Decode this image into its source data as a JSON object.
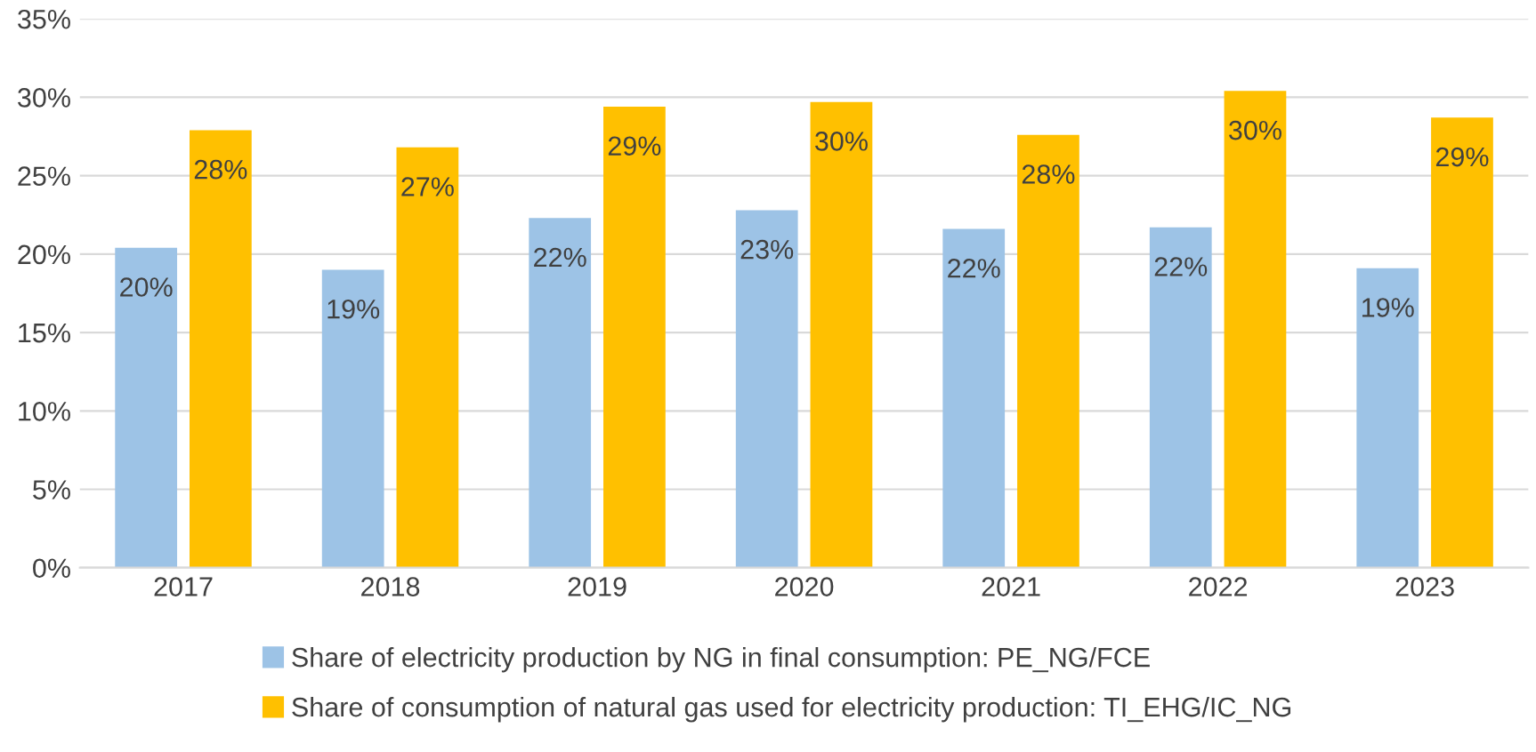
{
  "chart_data": {
    "type": "bar",
    "categories": [
      "2017",
      "2018",
      "2019",
      "2020",
      "2021",
      "2022",
      "2023"
    ],
    "series": [
      {
        "name": "Share of electricity production by NG in final consumption: PE_NG/FCE",
        "color": "#9dc3e6",
        "values": [
          20.4,
          19.0,
          22.3,
          22.8,
          21.6,
          21.7,
          19.1
        ],
        "value_labels": [
          "20%",
          "19%",
          "22%",
          "23%",
          "22%",
          "22%",
          "19%"
        ]
      },
      {
        "name": "Share of consumption of natural gas used for electricity production: TI_EHG/IC_NG",
        "color": "#ffc000",
        "values": [
          27.9,
          26.8,
          29.4,
          29.7,
          27.6,
          30.4,
          28.7
        ],
        "value_labels": [
          "28%",
          "27%",
          "29%",
          "30%",
          "28%",
          "30%",
          "29%"
        ]
      }
    ],
    "ylim": [
      0,
      35
    ],
    "yticks": [
      {
        "value": 0,
        "label": "0%"
      },
      {
        "value": 5,
        "label": "5%"
      },
      {
        "value": 10,
        "label": "10%"
      },
      {
        "value": 15,
        "label": "15%"
      },
      {
        "value": 20,
        "label": "20%"
      },
      {
        "value": 25,
        "label": "25%"
      },
      {
        "value": 30,
        "label": "30%"
      },
      {
        "value": 35,
        "label": "35%"
      }
    ],
    "grid": "y",
    "legend": "bottom"
  }
}
